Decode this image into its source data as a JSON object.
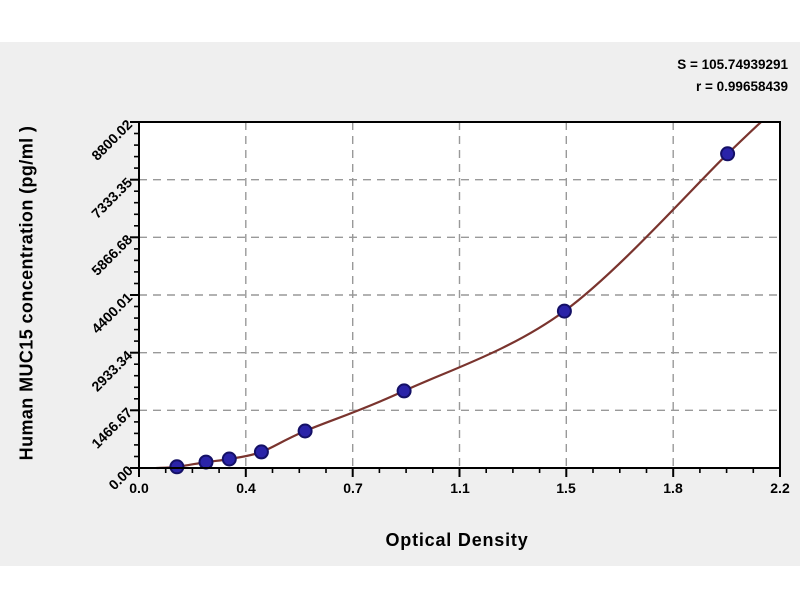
{
  "stats": {
    "s_line": "S = 105.74939291",
    "r_line": "r = 0.99658439"
  },
  "chart_data": {
    "type": "scatter",
    "title": "",
    "xlabel": "Optical Density",
    "ylabel": "Human MUC15 concentration (pg/ml )",
    "xlim": [
      0,
      2.2
    ],
    "ylim": [
      0,
      8800.02
    ],
    "grid": "dashed-major",
    "legend": "none",
    "x_ticks": {
      "labels": [
        "0.0",
        "0.4",
        "0.7",
        "1.1",
        "1.5",
        "1.8",
        "2.2"
      ],
      "values": [
        0,
        0.3667,
        0.7333,
        1.1,
        1.4667,
        1.8333,
        2.2
      ]
    },
    "y_ticks": {
      "labels": [
        "0.00",
        "1466.67",
        "2933.34",
        "4400.01",
        "5866.68",
        "7333.35",
        "8800.02"
      ],
      "values": [
        0,
        1466.67,
        2933.34,
        4400.01,
        5866.68,
        7333.35,
        8800.02
      ]
    },
    "series": [
      {
        "name": "standard-points",
        "marker": "filled-circle",
        "x": [
          0.13,
          0.23,
          0.31,
          0.42,
          0.57,
          0.91,
          1.46,
          2.02
        ],
        "y": [
          30,
          150,
          230,
          410,
          940,
          1960,
          3990,
          7990
        ]
      }
    ],
    "fit_curve": {
      "type": "regression-curve",
      "x_start": 0.06,
      "y_start": 0,
      "x_end": 2.135,
      "y_end": 8800.02
    },
    "colors": {
      "marker": "#2a23a8",
      "marker_edge": "#141066",
      "curve": "#7a342e",
      "grid": "#999999",
      "frame": "#000000",
      "plot_bg": "#ffffff",
      "canvas_bg": "#efefef",
      "text": "#000000"
    }
  }
}
